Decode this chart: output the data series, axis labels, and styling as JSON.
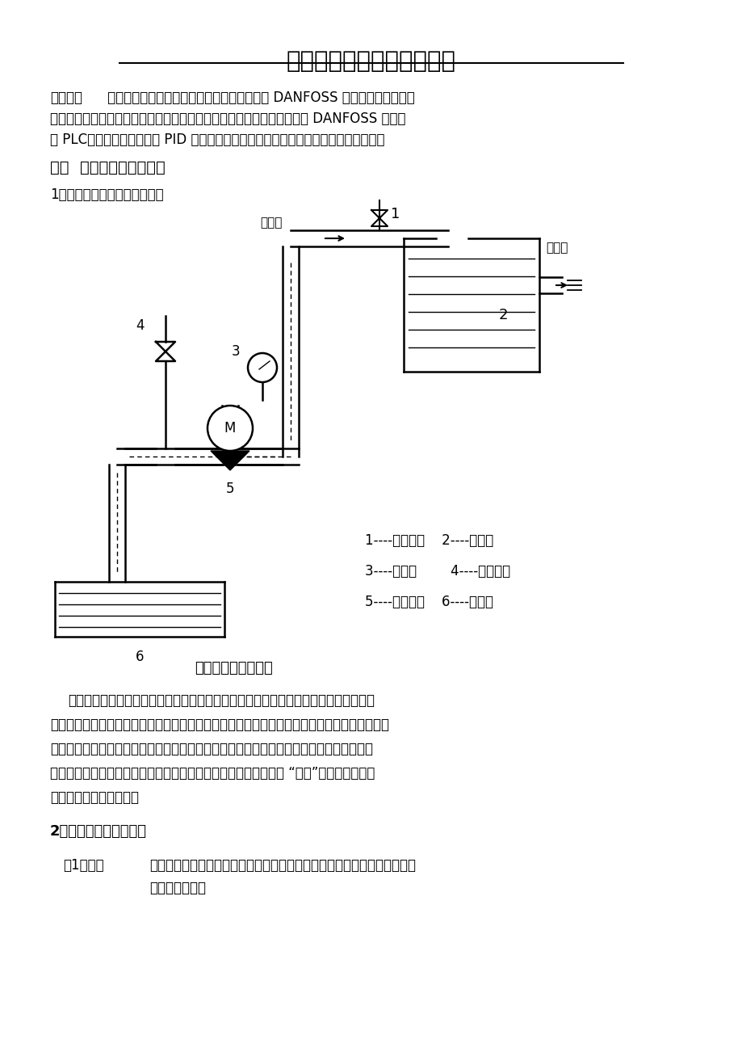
{
  "title": "变频器在供水系统中的应用",
  "bg_color": "#ffffff",
  "text_color": "#000000",
  "abstract_bold": "【概述】",
  "abstract_line1": " 以恒压供水系统的工作特性为例，介绍了丹麦 DANFOSS 变频器应用于变频调",
  "abstract_line2": "速供水系统中在节能、消除水锤效应、恒压运行等方面的优点，以及使用 DANFOSS 变频器",
  "abstract_line3": "与 PLC（编程序控制器）及 PID 控制器等自动化元件结合实现变频自动恒压供水系统。",
  "section1": "一．  供水系统运行及特点",
  "subsection1": "1、供水系统的基本构造及原理",
  "label_inlet": "入水口",
  "label_outlet": "出水口",
  "label_1": "1",
  "label_2": "2",
  "label_3": "3",
  "label_4": "4",
  "label_5": "5",
  "label_6": "6",
  "label_M": "M",
  "diagram_caption": "供水系统的基本组成",
  "legend_line1": "1----出水阀门    2----供水池",
  "legend_line2": "3----压力表        4----进水阀门",
  "legend_line3": "5----水泵装置    6----蓄水池",
  "body_line1": "以上是一套简单的供水系统基本组成，它主要是由水泵装置将低处水吸入加压抚到高处",
  "body_line2": "或其它远处的水池中，通过压力表来显示供水压力，当系统供水压力超过或者低于设定压力时，",
  "body_line3": "再通过手动调节出水阀门来调节系统压力，而这种阀门控制法的实质是水泵本身的供应能力",
  "body_line4": "（即电机的额定转速）不变，是通过改变系统水路中的阻力大小来 “强行”改变系统压力，",
  "body_line5": "以适应用户使用的要求。",
  "section2": "2、供水系统的主要参数",
  "param1_label": "（1）流量",
  "param1_text1": "单位时间内通过管道截面的水流量，在管道截面不变的情况下，其大小决定",
  "param1_text2": "于水流的速度。"
}
